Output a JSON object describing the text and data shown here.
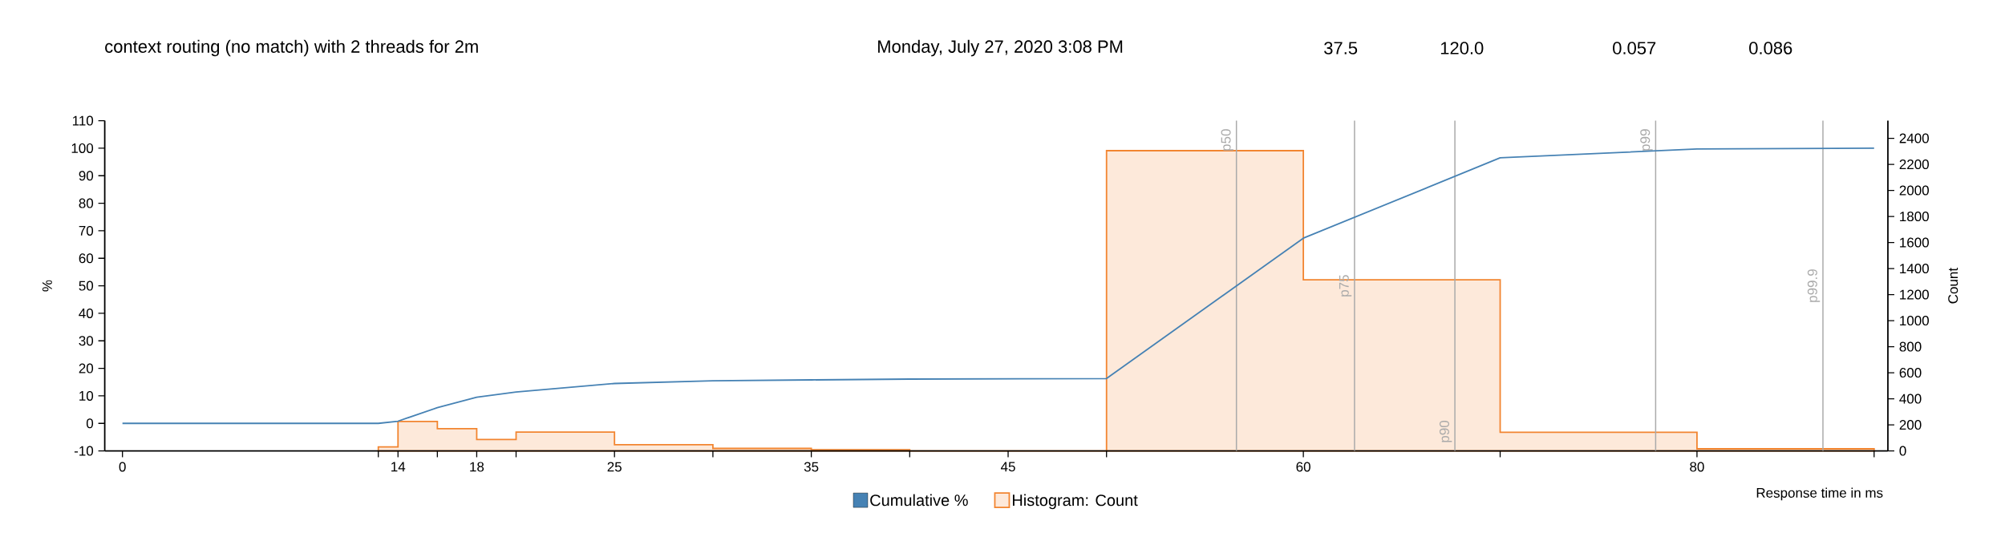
{
  "chart_data": {
    "type": "histogram",
    "annotations": [
      "context routing (no match) with 2 threads for 2m",
      "Monday, July 27, 2020 3:08 PM",
      "37.5",
      "120.0",
      "0.057",
      "0.086"
    ],
    "xlabel": "Response time in ms",
    "ylabel": "%",
    "y2label": "Count",
    "xlim": [
      -0.9,
      89.7
    ],
    "ylim": [
      -10,
      110
    ],
    "y2lim": [
      0,
      2535
    ],
    "xticks": [
      0,
      {
        "value": 13,
        "label": null
      },
      14,
      {
        "value": 16,
        "label": null
      },
      18,
      {
        "value": 20,
        "label": null
      },
      25,
      {
        "value": 30,
        "label": null
      },
      35,
      {
        "value": 40,
        "label": null
      },
      45,
      {
        "value": 50,
        "label": null
      },
      60,
      {
        "value": 70,
        "label": null
      },
      80,
      {
        "value": 89,
        "label": null
      }
    ],
    "yticks": [
      -10,
      0,
      10,
      20,
      30,
      40,
      50,
      60,
      70,
      80,
      90,
      100,
      110
    ],
    "y2ticks": [
      0,
      200,
      400,
      600,
      800,
      1000,
      1200,
      1400,
      1600,
      1800,
      2000,
      2200,
      2400
    ],
    "series": [
      {
        "name": "Cumulative %",
        "type": "line",
        "color": "#4682b4",
        "x": [
          0,
          13,
          14,
          16,
          18,
          20,
          25,
          30,
          35,
          40,
          50,
          60,
          70,
          80,
          89
        ],
        "values": [
          0,
          0,
          0.8,
          5.7,
          9.5,
          11.4,
          14.5,
          15.5,
          15.8,
          16.1,
          16.3,
          67.3,
          96.5,
          99.7,
          100
        ]
      },
      {
        "name": "Histogram: Count",
        "axis": "y2",
        "color": "#f28530",
        "bins": [
          13,
          14,
          16,
          18,
          20,
          25,
          30,
          35,
          40,
          50,
          60,
          70,
          80,
          89
        ],
        "values": [
          31,
          226,
          170,
          88,
          144,
          47,
          19,
          9,
          0,
          2305,
          1313,
          143,
          16
        ]
      }
    ],
    "ref_lines": [
      {
        "axis": "x",
        "value": 56.6,
        "label": "p50",
        "color": "#aaaaaa"
      },
      {
        "axis": "x",
        "value": 62.6,
        "label": "p75",
        "color": "#aaaaaa"
      },
      {
        "axis": "x",
        "value": 67.7,
        "label": "p90",
        "color": "#aaaaaa"
      },
      {
        "axis": "x",
        "value": 77.9,
        "label": "p99",
        "color": "#aaaaaa"
      },
      {
        "axis": "x",
        "value": 86.4,
        "label": "p99.9",
        "color": "#aaaaaa"
      }
    ],
    "legend": "bottom"
  }
}
